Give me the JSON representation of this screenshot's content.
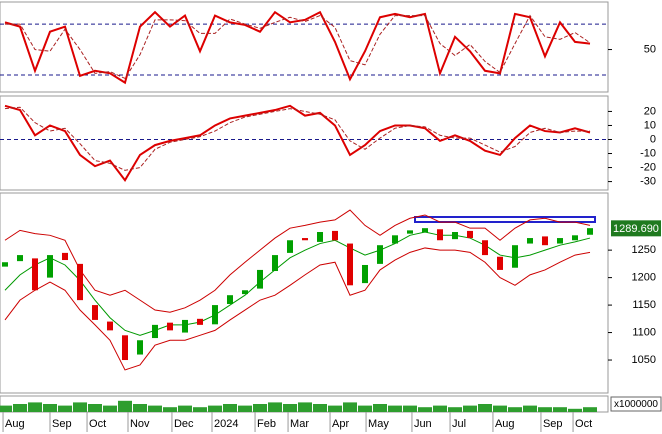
{
  "chart_data": [
    {
      "type": "line",
      "ylim": [
        0,
        106
      ],
      "yticks": [
        50
      ],
      "hlines": [
        20,
        80
      ],
      "series": [
        {
          "color": "#dd0000",
          "values": [
            82,
            77,
            25,
            71,
            77,
            19,
            25,
            22,
            11,
            77,
            94,
            77,
            90,
            48,
            90,
            82,
            79,
            71,
            94,
            82,
            85,
            94,
            59,
            15,
            48,
            88,
            92,
            88,
            92,
            22,
            65,
            48,
            25,
            22,
            92,
            88,
            42,
            82,
            59,
            57
          ]
        },
        {
          "color": "#aa2222",
          "dash": true,
          "values": [
            80,
            80,
            50,
            48,
            74,
            50,
            22,
            24,
            16,
            44,
            85,
            85,
            84,
            69,
            69,
            86,
            80,
            75,
            82,
            88,
            83,
            90,
            76,
            37,
            32,
            68,
            90,
            90,
            90,
            57,
            43,
            56,
            36,
            23,
            57,
            90,
            65,
            62,
            70,
            58
          ]
        }
      ]
    },
    {
      "type": "line",
      "ylim": [
        -36,
        31
      ],
      "yticks": [
        20,
        10,
        0,
        -10,
        -20,
        -30
      ],
      "hlines": [
        0
      ],
      "series": [
        {
          "color": "#dd0000",
          "values": [
            24,
            21,
            3,
            10,
            6,
            -11,
            -19,
            -15,
            -29,
            -11,
            -4,
            -1,
            1,
            3,
            10,
            15,
            17,
            19,
            21,
            24,
            17,
            19,
            10,
            -11,
            -4,
            6,
            10,
            10,
            8,
            -1,
            3,
            -1,
            -8,
            -11,
            1,
            10,
            6,
            5,
            8,
            5
          ]
        },
        {
          "color": "#aa2222",
          "dash": true,
          "values": [
            22,
            23,
            12,
            6,
            8,
            -3,
            -15,
            -17,
            -22,
            -20,
            -7,
            -2,
            0,
            2,
            6,
            12,
            16,
            18,
            20,
            22,
            20,
            18,
            14,
            -1,
            -7,
            1,
            8,
            10,
            9,
            3,
            1,
            1,
            -4,
            -9,
            -5,
            5,
            8,
            5,
            6,
            6
          ]
        }
      ]
    },
    {
      "type": "candlestick",
      "ylim": [
        990,
        1354
      ],
      "yticks": [
        1250,
        1200,
        1150,
        1100,
        1050
      ],
      "up_color": "#00a000",
      "down_color": "#e00000",
      "open": [
        1220,
        1230,
        1235,
        1200,
        1245,
        1225,
        1150,
        1120,
        1095,
        1060,
        1090,
        1118,
        1100,
        1125,
        1115,
        1152,
        1170,
        1180,
        1212,
        1245,
        1272,
        1265,
        1285,
        1262,
        1190,
        1225,
        1262,
        1280,
        1282,
        1288,
        1270,
        1285,
        1268,
        1238,
        1218,
        1262,
        1275,
        1262,
        1268,
        1278
      ],
      "close": [
        1228,
        1241,
        1177,
        1241,
        1232,
        1159,
        1123,
        1104,
        1050,
        1086,
        1114,
        1104,
        1123,
        1114,
        1150,
        1168,
        1177,
        1214,
        1241,
        1268,
        1268,
        1283,
        1268,
        1186,
        1223,
        1259,
        1277,
        1286,
        1290,
        1268,
        1283,
        1272,
        1241,
        1214,
        1259,
        1272,
        1259,
        1272,
        1277,
        1290
      ],
      "bands": [
        {
          "color": "#cc0000",
          "values": [
            1268,
            1286,
            1280,
            1277,
            1268,
            1214,
            1177,
            1168,
            1177,
            1159,
            1141,
            1137,
            1145,
            1159,
            1177,
            1205,
            1228,
            1250,
            1272,
            1290,
            1295,
            1301,
            1305,
            1323,
            1295,
            1277,
            1295,
            1308,
            1314,
            1301,
            1301,
            1290,
            1290,
            1268,
            1290,
            1305,
            1308,
            1301,
            1301,
            1295
          ]
        },
        {
          "color": "#009900",
          "values": [
            1177,
            1205,
            1223,
            1236,
            1223,
            1195,
            1159,
            1127,
            1104,
            1095,
            1104,
            1114,
            1114,
            1119,
            1132,
            1150,
            1168,
            1192,
            1214,
            1236,
            1250,
            1262,
            1268,
            1254,
            1241,
            1250,
            1262,
            1277,
            1283,
            1277,
            1277,
            1272,
            1259,
            1241,
            1236,
            1241,
            1250,
            1259,
            1265,
            1272
          ]
        },
        {
          "color": "#cc0000",
          "values": [
            1123,
            1159,
            1177,
            1192,
            1177,
            1141,
            1114,
            1086,
            1032,
            1041,
            1077,
            1086,
            1086,
            1095,
            1104,
            1123,
            1141,
            1159,
            1168,
            1186,
            1205,
            1223,
            1228,
            1168,
            1177,
            1214,
            1232,
            1246,
            1254,
            1250,
            1250,
            1246,
            1228,
            1200,
            1186,
            1205,
            1214,
            1228,
            1241,
            1246
          ]
        }
      ],
      "last_price": {
        "value": 1289.69,
        "label": "1289.690"
      }
    },
    {
      "type": "bar",
      "ylim": [
        0,
        10
      ],
      "unit_label": "x1000000",
      "color": "#2e9e2e",
      "values": [
        4,
        5,
        6,
        5,
        4,
        6,
        5,
        4,
        7,
        5,
        4,
        3,
        4,
        3,
        4,
        5,
        4,
        5,
        6,
        5,
        6,
        5,
        4,
        6,
        4,
        5,
        4,
        4,
        3,
        4,
        3,
        4,
        5,
        4,
        3,
        4,
        3,
        3,
        2,
        3
      ],
      "xlim": [
        -0.333,
        40.2
      ],
      "xticks": [
        {
          "value": -0.13,
          "label": "Aug"
        },
        {
          "value": 3,
          "label": "Sep"
        },
        {
          "value": 5.47,
          "label": "Oct"
        },
        {
          "value": 8.2,
          "label": "Nov"
        },
        {
          "value": 11.13,
          "label": "Dec"
        },
        {
          "value": 13.8,
          "label": "2024"
        },
        {
          "value": 16.67,
          "label": "Feb"
        },
        {
          "value": 18.87,
          "label": "Mar"
        },
        {
          "value": 21.67,
          "label": "Apr"
        },
        {
          "value": 24.07,
          "label": "May"
        },
        {
          "value": 27.13,
          "label": "Jun"
        },
        {
          "value": 29.67,
          "label": "Jul"
        },
        {
          "value": 32.53,
          "label": "Aug"
        },
        {
          "value": 35.73,
          "label": "Sep"
        },
        {
          "value": 37.87,
          "label": "Oct"
        }
      ]
    }
  ]
}
